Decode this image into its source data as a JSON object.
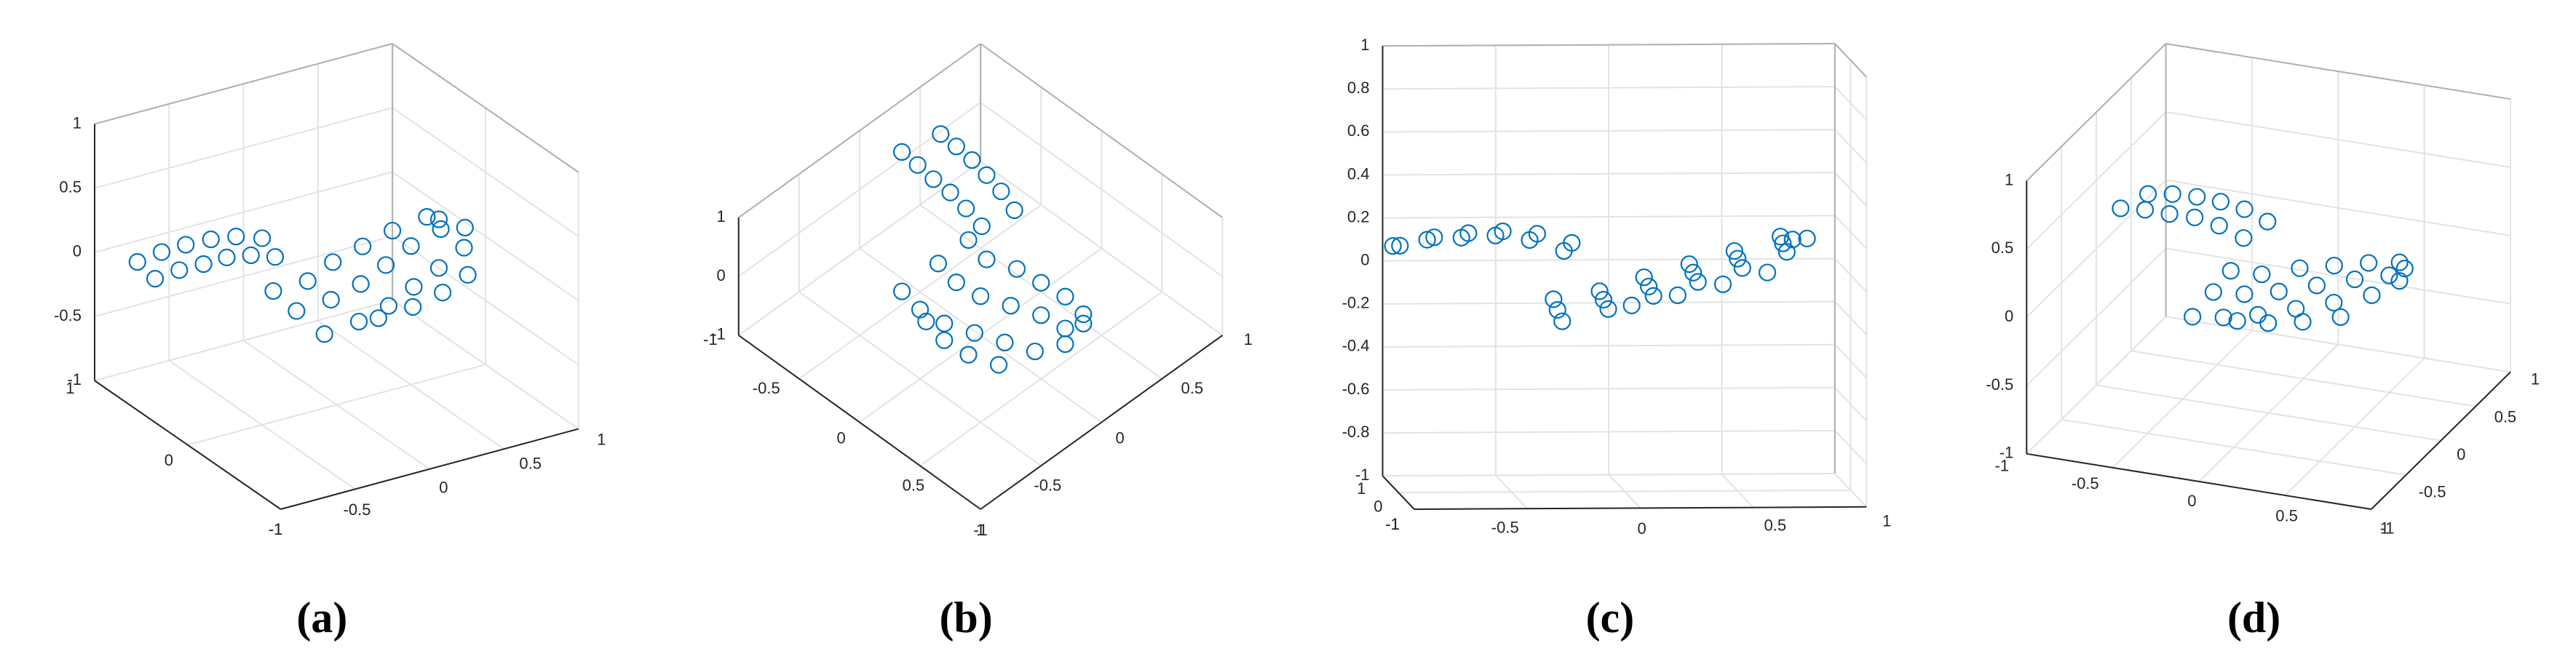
{
  "chart_data": [
    {
      "type": "scatter3d",
      "title": "(a)",
      "color": "#0072bd",
      "xlim": [
        -1,
        1
      ],
      "ylim": [
        -1,
        1
      ],
      "zlim": [
        -1,
        1
      ],
      "xticks": [
        -1,
        -0.5,
        0,
        0.5,
        1
      ],
      "yticks": [
        -1,
        0,
        1
      ],
      "zticks": [
        -1,
        -0.5,
        0,
        0.5,
        1
      ],
      "x": [
        -1,
        -0.85,
        -0.7,
        -0.55,
        -0.4,
        -0.25,
        -0.95,
        -0.8,
        -0.65,
        -0.5,
        -0.35,
        -0.2,
        -0.3,
        -0.3,
        -0.3,
        -0.1,
        -0.1,
        -0.1,
        0.1,
        0.1,
        0.1,
        0.3,
        0.3,
        0.3,
        0.5,
        0.5,
        0.5,
        0.7,
        0.7,
        0.7,
        0.8,
        0.75,
        0.6,
        0.4,
        0.2,
        0
      ],
      "y": [
        0.35,
        0.33,
        0.31,
        0.3,
        0.28,
        0.26,
        0.62,
        0.6,
        0.58,
        0.55,
        0.52,
        0.48,
        -0.35,
        -0.05,
        0.2,
        -0.4,
        -0.1,
        0.15,
        -0.4,
        -0.1,
        0.2,
        -0.35,
        -0.05,
        0.2,
        -0.3,
        0,
        0.2,
        -0.25,
        0,
        0.15,
        -0.1,
        0.1,
        -0.45,
        -0.5,
        -0.5,
        -0.45
      ],
      "z": [
        0.12,
        0.15,
        0.16,
        0.17,
        0.15,
        0.1,
        0.1,
        0.14,
        0.16,
        0.17,
        0.16,
        0.12,
        -0.18,
        -0.15,
        -0.12,
        -0.12,
        -0.1,
        -0.08,
        -0.06,
        -0.04,
        -0.02,
        0,
        0.02,
        0.04,
        0.06,
        0.08,
        0.1,
        0.13,
        0.15,
        0.17,
        0.18,
        0.16,
        0.05,
        0,
        -0.05,
        -0.1
      ]
    },
    {
      "type": "scatter3d",
      "title": "(b)",
      "color": "#0072bd",
      "xlim": [
        -1,
        1
      ],
      "ylim": [
        -1,
        1
      ],
      "zlim": [
        -1,
        1
      ],
      "xticks": [
        -1,
        -0.5,
        0,
        0.5,
        1
      ],
      "yticks": [
        -1,
        -0.5,
        0,
        0.5,
        1
      ],
      "zticks": [
        -1,
        0,
        1
      ],
      "x": [
        -1,
        -0.85,
        -0.7,
        -0.55,
        -0.4,
        -0.25,
        -0.95,
        -0.8,
        -0.65,
        -0.5,
        -0.35,
        -0.2,
        -0.3,
        -0.3,
        -0.3,
        -0.1,
        -0.1,
        -0.1,
        0.1,
        0.1,
        0.1,
        0.3,
        0.3,
        0.3,
        0.5,
        0.5,
        0.5,
        0.7,
        0.7,
        0.7,
        0.8,
        0.75,
        0.6,
        0.4,
        0.2,
        0
      ],
      "y": [
        0.35,
        0.33,
        0.31,
        0.3,
        0.28,
        0.26,
        0.62,
        0.6,
        0.58,
        0.55,
        0.52,
        0.48,
        -0.35,
        -0.05,
        0.2,
        -0.4,
        -0.1,
        0.15,
        -0.4,
        -0.1,
        0.2,
        -0.35,
        -0.05,
        0.2,
        -0.3,
        0,
        0.2,
        -0.25,
        0,
        0.15,
        -0.1,
        0.1,
        -0.45,
        -0.5,
        -0.5,
        -0.45
      ],
      "z": [
        0.12,
        0.15,
        0.16,
        0.17,
        0.15,
        0.1,
        0.1,
        0.14,
        0.16,
        0.17,
        0.16,
        0.12,
        -0.18,
        -0.15,
        -0.12,
        -0.12,
        -0.1,
        -0.08,
        -0.06,
        -0.04,
        -0.02,
        0,
        0.02,
        0.04,
        0.06,
        0.08,
        0.1,
        0.13,
        0.15,
        0.17,
        0.18,
        0.16,
        0.05,
        0,
        -0.05,
        -0.1
      ]
    },
    {
      "type": "scatter3d",
      "title": "(c)",
      "color": "#0072bd",
      "xlim": [
        -1,
        1
      ],
      "ylim": [
        -1,
        1
      ],
      "zlim": [
        -1,
        1
      ],
      "xticks": [
        -1,
        -0.5,
        0,
        0.5,
        1
      ],
      "yticks": [
        -1,
        0,
        1
      ],
      "zticks": [
        -1,
        -0.8,
        -0.6,
        -0.4,
        -0.2,
        0,
        0.2,
        0.4,
        0.6,
        0.8,
        1
      ],
      "x": [
        -1,
        -0.85,
        -0.7,
        -0.55,
        -0.4,
        -0.25,
        -0.95,
        -0.8,
        -0.65,
        -0.5,
        -0.35,
        -0.2,
        -0.3,
        -0.3,
        -0.3,
        -0.1,
        -0.1,
        -0.1,
        0.1,
        0.1,
        0.1,
        0.3,
        0.3,
        0.3,
        0.5,
        0.5,
        0.5,
        0.7,
        0.7,
        0.7,
        0.8,
        0.75,
        0.6,
        0.4,
        0.2,
        0
      ],
      "y": [
        0.35,
        0.33,
        0.31,
        0.3,
        0.28,
        0.26,
        0.62,
        0.6,
        0.58,
        0.55,
        0.52,
        0.48,
        -0.35,
        -0.05,
        0.2,
        -0.4,
        -0.1,
        0.15,
        -0.4,
        -0.1,
        0.2,
        -0.35,
        -0.05,
        0.2,
        -0.3,
        0,
        0.2,
        -0.25,
        0,
        0.15,
        -0.1,
        0.1,
        -0.45,
        -0.5,
        -0.5,
        -0.45
      ],
      "z": [
        0.12,
        0.15,
        0.16,
        0.17,
        0.15,
        0.1,
        0.1,
        0.14,
        0.16,
        0.17,
        0.16,
        0.12,
        -0.18,
        -0.15,
        -0.12,
        -0.12,
        -0.1,
        -0.08,
        -0.06,
        -0.04,
        -0.02,
        0,
        0.02,
        0.04,
        0.06,
        0.08,
        0.1,
        0.13,
        0.15,
        0.17,
        0.18,
        0.16,
        0.05,
        0,
        -0.05,
        -0.1
      ]
    },
    {
      "type": "scatter3d",
      "title": "(d)",
      "color": "#0072bd",
      "xlim": [
        -1,
        1
      ],
      "ylim": [
        -1,
        1
      ],
      "zlim": [
        -1,
        1
      ],
      "xticks": [
        -1,
        -0.5,
        0,
        0.5,
        1
      ],
      "yticks": [
        -1,
        -0.5,
        0,
        0.5,
        1
      ],
      "zticks": [
        -1,
        -0.5,
        0,
        0.5,
        1
      ],
      "x": [
        -1,
        -0.85,
        -0.7,
        -0.55,
        -0.4,
        -0.25,
        -0.95,
        -0.8,
        -0.65,
        -0.5,
        -0.35,
        -0.2,
        -0.3,
        -0.3,
        -0.3,
        -0.1,
        -0.1,
        -0.1,
        0.1,
        0.1,
        0.1,
        0.3,
        0.3,
        0.3,
        0.5,
        0.5,
        0.5,
        0.7,
        0.7,
        0.7,
        0.8,
        0.75,
        0.6,
        0.4,
        0.2,
        0
      ],
      "y": [
        0.35,
        0.33,
        0.31,
        0.3,
        0.28,
        0.26,
        0.62,
        0.6,
        0.58,
        0.55,
        0.52,
        0.48,
        -0.35,
        -0.05,
        0.2,
        -0.4,
        -0.1,
        0.15,
        -0.4,
        -0.1,
        0.2,
        -0.35,
        -0.05,
        0.2,
        -0.3,
        0,
        0.2,
        -0.25,
        0,
        0.15,
        -0.1,
        0.1,
        -0.45,
        -0.5,
        -0.5,
        -0.45
      ],
      "z": [
        0.12,
        0.15,
        0.16,
        0.17,
        0.15,
        0.1,
        0.1,
        0.14,
        0.16,
        0.17,
        0.16,
        0.12,
        -0.18,
        -0.15,
        -0.12,
        -0.12,
        -0.1,
        -0.08,
        -0.06,
        -0.04,
        -0.02,
        0,
        0.02,
        0.04,
        0.06,
        0.08,
        0.1,
        0.13,
        0.15,
        0.17,
        0.18,
        0.16,
        0.05,
        0,
        -0.05,
        -0.1
      ]
    }
  ]
}
